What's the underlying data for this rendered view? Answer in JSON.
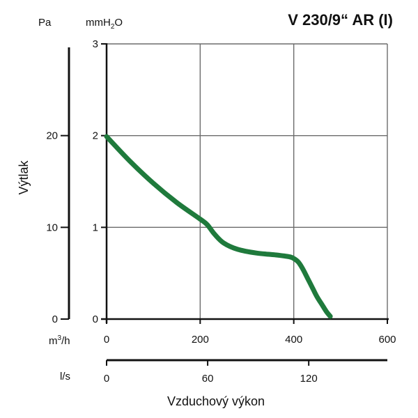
{
  "chart_data": {
    "type": "line",
    "title": "V 230/9“ AR (I)",
    "xlabel": "Vzduchový výkon",
    "ylabel": "Výtlak",
    "x_unit": "m³/h",
    "x_unit_base": "m",
    "x_unit_sup": "3",
    "x_unit_tail": "/h",
    "x2_unit": "l/s",
    "y_unit_left": "Pa",
    "y_unit_right": "mmH₂O",
    "y_unit_right_base": "mmH",
    "y_unit_right_sub": "2",
    "y_unit_right_tail": "O",
    "xlim": [
      0,
      600
    ],
    "ylim": [
      0,
      3
    ],
    "x_ticks": [
      0,
      200,
      400,
      600
    ],
    "y_ticks": [
      0,
      1,
      2,
      3
    ],
    "y_pa_ticks": [
      0,
      10,
      20
    ],
    "x2_ticks": [
      0,
      60,
      120
    ],
    "grid": true,
    "line_color": "#1f7a3c",
    "series": [
      {
        "x": [
          0,
          50,
          100,
          150,
          200,
          215,
          230,
          250,
          280,
          320,
          360,
          390,
          400,
          410,
          420,
          430,
          440,
          450,
          460,
          470,
          478
        ],
        "y": [
          1.99,
          1.72,
          1.48,
          1.27,
          1.09,
          1.03,
          0.93,
          0.83,
          0.76,
          0.72,
          0.7,
          0.68,
          0.66,
          0.62,
          0.54,
          0.44,
          0.34,
          0.24,
          0.16,
          0.08,
          0.03
        ]
      }
    ]
  }
}
